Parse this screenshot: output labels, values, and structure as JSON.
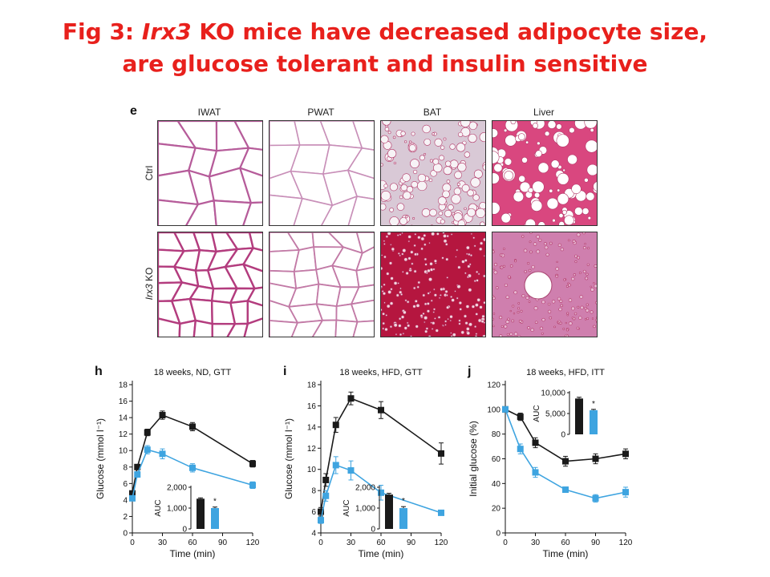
{
  "title": {
    "prefix": "Fig 3: ",
    "gene": "Irx3",
    "line1_rest": " KO mice have decreased adipocyte size,",
    "line2": "are glucose tolerant and insulin sensitive"
  },
  "histology": {
    "letter": "e",
    "columns": [
      "IWAT",
      "PWAT",
      "BAT",
      "Liver"
    ],
    "rows": [
      {
        "label": "Ctrl"
      },
      {
        "label_gene": "Irx3",
        "label_rest": " KO"
      }
    ]
  },
  "colors": {
    "title": "#e8201c",
    "ctrl": "#1a1a1a",
    "ko": "#3ea4e0"
  },
  "chart_data": [
    {
      "type": "line",
      "letter": "h",
      "title": "18 weeks, ND, GTT",
      "xlabel": "Time (min)",
      "ylabel": "Glucose (mmol l⁻¹)",
      "x": [
        0,
        5,
        15,
        30,
        60,
        120
      ],
      "xticks": [
        0,
        30,
        60,
        90,
        120
      ],
      "ylim": [
        0,
        18
      ],
      "yticks": [
        0,
        2,
        4,
        6,
        8,
        10,
        12,
        14,
        16,
        18
      ],
      "series": [
        {
          "values": [
            4.8,
            8.0,
            12.2,
            14.3,
            12.9,
            8.4
          ],
          "err": [
            0.2,
            0.3,
            0.4,
            0.5,
            0.5,
            0.4
          ],
          "color": "#1a1a1a"
        },
        {
          "values": [
            4.2,
            7.1,
            10.1,
            9.6,
            7.9,
            5.8
          ],
          "err": [
            0.2,
            0.3,
            0.5,
            0.6,
            0.5,
            0.4
          ],
          "color": "#3ea4e0"
        }
      ],
      "inset": {
        "ylabel": "AUC",
        "yticks": [
          0,
          1000,
          2000
        ],
        "ytick_labels": [
          "0",
          "1,000",
          "2,000"
        ],
        "ylim": [
          0,
          2000
        ],
        "values": [
          1450,
          1000
        ],
        "err": [
          40,
          50
        ],
        "star": "*"
      }
    },
    {
      "type": "line",
      "letter": "i",
      "title": "18 weeks, HFD, GTT",
      "xlabel": "Time (min)",
      "ylabel": "Glucose (mmol l⁻¹)",
      "x": [
        0,
        5,
        15,
        30,
        60,
        120
      ],
      "xticks": [
        0,
        30,
        60,
        90,
        120
      ],
      "ylim": [
        4,
        18
      ],
      "yticks": [
        4,
        6,
        8,
        10,
        12,
        14,
        16,
        18
      ],
      "series": [
        {
          "values": [
            6.0,
            9.0,
            14.2,
            16.7,
            15.6,
            11.5
          ],
          "err": [
            0.4,
            0.6,
            0.7,
            0.6,
            0.8,
            1.0
          ],
          "color": "#1a1a1a"
        },
        {
          "values": [
            5.2,
            7.5,
            10.4,
            9.9,
            7.8,
            5.9
          ],
          "err": [
            0.3,
            0.5,
            0.8,
            0.9,
            0.7,
            0.2
          ],
          "color": "#3ea4e0"
        }
      ],
      "inset": {
        "ylabel": "AUC",
        "yticks": [
          0,
          1000,
          2000
        ],
        "ytick_labels": [
          "0",
          "1,000",
          "2,000"
        ],
        "ylim": [
          0,
          2000
        ],
        "values": [
          1650,
          1000
        ],
        "err": [
          60,
          70
        ],
        "star": "*"
      }
    },
    {
      "type": "line",
      "letter": "j",
      "title": "18 weeks, HFD, ITT",
      "xlabel": "Time (min)",
      "ylabel": "Initial glucose (%)",
      "x": [
        0,
        15,
        30,
        60,
        90,
        120
      ],
      "xticks": [
        0,
        30,
        60,
        90,
        120
      ],
      "ylim": [
        0,
        120
      ],
      "yticks": [
        0,
        20,
        40,
        60,
        80,
        100,
        120
      ],
      "series": [
        {
          "values": [
            100,
            94,
            73,
            58,
            60,
            64
          ],
          "err": [
            1,
            3,
            4,
            4,
            4,
            4
          ],
          "color": "#1a1a1a"
        },
        {
          "values": [
            100,
            68,
            49,
            35,
            28,
            33
          ],
          "err": [
            1,
            4,
            4,
            2,
            3,
            4
          ],
          "color": "#3ea4e0"
        }
      ],
      "inset": {
        "ylabel": "AUC",
        "yticks": [
          0,
          5000,
          10000
        ],
        "ytick_labels": [
          "0",
          "5,000",
          "10,000"
        ],
        "ylim": [
          0,
          10000
        ],
        "values": [
          8600,
          5800
        ],
        "err": [
          300,
          200
        ],
        "star": "*"
      }
    }
  ]
}
